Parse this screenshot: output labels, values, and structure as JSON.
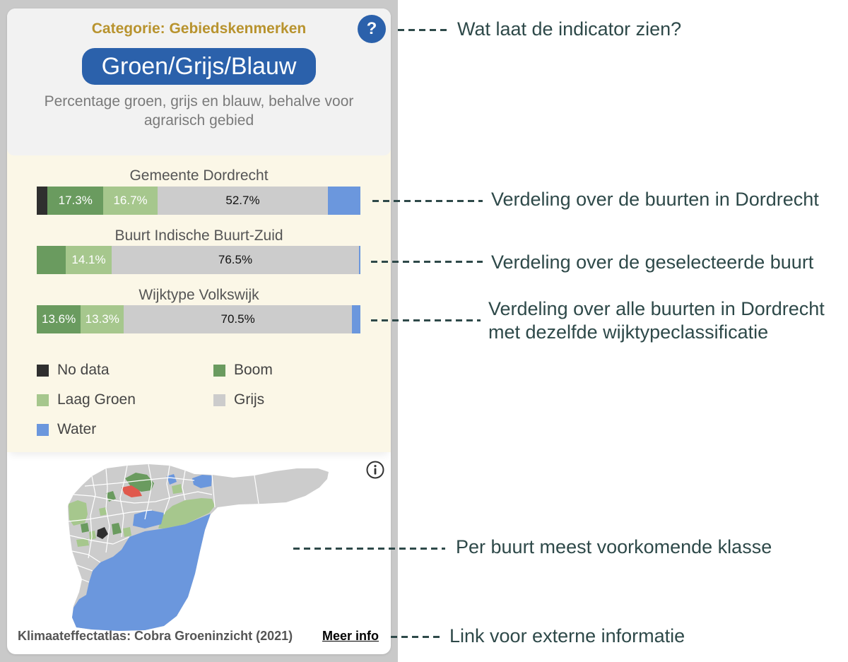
{
  "card": {
    "category": "Categorie: Gebiedskenmerken",
    "help_button": {
      "icon": "question-mark-icon",
      "text": "?"
    },
    "indicator_button": "Groen/Grijs/Blauw",
    "description": "Percentage groen, grijs en blauw, behalve voor agrarisch gebied",
    "classes": [
      {
        "label": "No data",
        "color": "#2f2f2f",
        "text_color": "#ffffff"
      },
      {
        "label": "Boom",
        "color": "#6a9b5f",
        "text_color": "#ffffff"
      },
      {
        "label": "Laag Groen",
        "color": "#a6c78d",
        "text_color": "#ffffff"
      },
      {
        "label": "Grijs",
        "color": "#cccccc",
        "text_color": "#111111"
      },
      {
        "label": "Water",
        "color": "#6b97dd",
        "text_color": "#ffffff"
      }
    ],
    "bars": [
      {
        "title": "Gemeente Dordrecht",
        "values": [
          3.3,
          17.3,
          16.7,
          52.7,
          10.0
        ],
        "labels": [
          "",
          "17.3%",
          "16.7%",
          "52.7%",
          ""
        ]
      },
      {
        "title": "Buurt Indische Buurt-Zuid",
        "values": [
          0,
          9.0,
          14.1,
          76.5,
          0.4
        ],
        "labels": [
          "",
          "",
          "14.1%",
          "76.5%",
          ""
        ]
      },
      {
        "title": "Wijktype Volkswijk",
        "values": [
          0,
          13.6,
          13.3,
          70.5,
          2.6
        ],
        "labels": [
          "",
          "13.6%",
          "13.3%",
          "70.5%",
          ""
        ]
      }
    ],
    "map": {
      "info_icon": "info-icon",
      "selected_color": "#e0594d"
    },
    "source": "Klimaateffectatlas: Cobra Groeninzicht (2021)",
    "more_info_link": "Meer info"
  },
  "annotations": [
    [
      "Wat laat de indicator zien?"
    ],
    [
      "Verdeling over de buurten in Dordrecht"
    ],
    [
      "Verdeling over de geselecteerde buurt"
    ],
    [
      "Verdeling over alle buurten in Dordrecht",
      "met dezelfde wijktypeclassificatie"
    ],
    [
      "Per buurt meest voorkomende klasse"
    ],
    [
      "Link voor externe informatie"
    ]
  ],
  "theme": {
    "accent": "#2b61ab",
    "category_color": "#b8932e",
    "annotation_color": "#2e4949"
  }
}
